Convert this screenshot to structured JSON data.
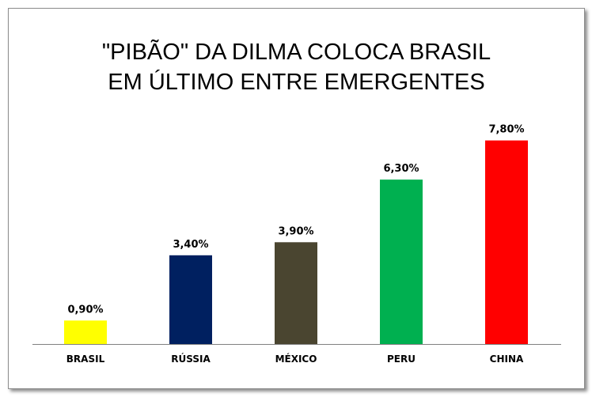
{
  "chart_data": {
    "type": "bar",
    "title_lines": [
      "\"PIBÃO\" DA DILMA COLOCA BRASIL",
      "EM ÚLTIMO ENTRE EMERGENTES"
    ],
    "categories": [
      "BRASIL",
      "RÚSSIA",
      "MÉXICO",
      "PERU",
      "CHINA"
    ],
    "values": [
      0.9,
      3.4,
      3.9,
      6.3,
      7.8
    ],
    "value_labels": [
      "0,90%",
      "3,40%",
      "3,90%",
      "6,30%",
      "7,80%"
    ],
    "colors": [
      "#ffff00",
      "#002060",
      "#4a4530",
      "#00b050",
      "#ff0000"
    ],
    "ylim": [
      0,
      8.5
    ],
    "grid": false,
    "legend": "none"
  }
}
